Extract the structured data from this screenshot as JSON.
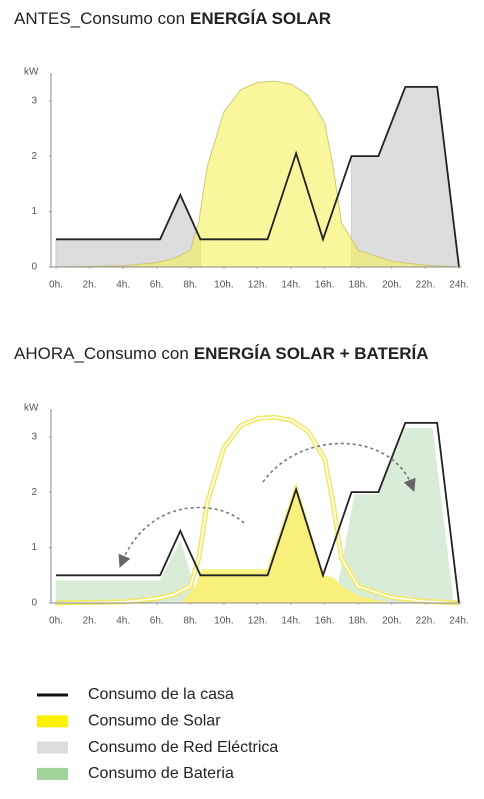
{
  "chart_data": [
    {
      "type": "area",
      "title": [
        "ANTES_Consumo con",
        "ENERGÍA SOLAR"
      ],
      "ylabel": "kW",
      "xlim": [
        0,
        24
      ],
      "ylim": [
        0,
        3.5
      ],
      "yticks": [
        0,
        1,
        2,
        3
      ],
      "xticks": [
        {
          "value": 0,
          "label": "0h."
        },
        {
          "value": 2,
          "label": "2h."
        },
        {
          "value": 4,
          "label": "4h."
        },
        {
          "value": 6,
          "label": "6h."
        },
        {
          "value": 8,
          "label": "8h."
        },
        {
          "value": 10,
          "label": "10h."
        },
        {
          "value": 12,
          "label": "12h."
        },
        {
          "value": 14,
          "label": "14h."
        },
        {
          "value": 16,
          "label": "16h."
        },
        {
          "value": 18,
          "label": "18h."
        },
        {
          "value": 20,
          "label": "20h."
        },
        {
          "value": 22,
          "label": "22h."
        },
        {
          "value": 24,
          "label": "24h."
        }
      ],
      "series": [
        {
          "kind": "area",
          "color": "#dcdcdc",
          "stroke": "#cfcfcf",
          "x": [
            0,
            6.2,
            7.4,
            8.6,
            12,
            17.6,
            19.2,
            20.8,
            22.7,
            24
          ],
          "values": [
            0.5,
            0.5,
            1.3,
            0.5,
            null,
            2.0,
            2.0,
            3.25,
            3.25,
            0
          ]
        },
        {
          "kind": "area",
          "color": "rgba(246,240,90,0.6)",
          "stroke": "#cfc870",
          "x": [
            0,
            4,
            6,
            7,
            8,
            8.5,
            9,
            10,
            11,
            12,
            13,
            14,
            15,
            16,
            16.5,
            17,
            18,
            20,
            22,
            24
          ],
          "values": [
            0,
            0.02,
            0.08,
            0.15,
            0.3,
            0.8,
            1.8,
            2.8,
            3.2,
            3.33,
            3.35,
            3.3,
            3.1,
            2.6,
            1.8,
            0.8,
            0.3,
            0.1,
            0.03,
            0
          ]
        },
        {
          "kind": "line",
          "color": "#222222",
          "x": [
            0,
            6.2,
            7.4,
            8.6,
            12.6,
            14.3,
            15.9,
            17.6,
            19.2,
            20.8,
            22.7,
            24
          ],
          "values": [
            0.5,
            0.5,
            1.3,
            0.5,
            0.5,
            2.05,
            0.5,
            2.0,
            2.0,
            3.25,
            3.25,
            0
          ]
        }
      ]
    },
    {
      "type": "area",
      "title": [
        "AHORA_Consumo con",
        "ENERGÍA SOLAR + BATERÍA"
      ],
      "ylabel": "kW",
      "xlim": [
        0,
        24
      ],
      "ylim": [
        0,
        3.5
      ],
      "yticks": [
        0,
        1,
        2,
        3
      ],
      "xticks": [
        {
          "value": 0,
          "label": "0h."
        },
        {
          "value": 2,
          "label": "2h."
        },
        {
          "value": 4,
          "label": "4h."
        },
        {
          "value": 6,
          "label": "6h."
        },
        {
          "value": 8,
          "label": "8h."
        },
        {
          "value": 10,
          "label": "10h."
        },
        {
          "value": 12,
          "label": "12h."
        },
        {
          "value": 14,
          "label": "14h."
        },
        {
          "value": 16,
          "label": "16h."
        },
        {
          "value": 18,
          "label": "18h."
        },
        {
          "value": 20,
          "label": "20h."
        },
        {
          "value": 22,
          "label": "22h."
        },
        {
          "value": 24,
          "label": "24h."
        }
      ],
      "series": [
        {
          "kind": "area",
          "color": "#d9ecd7",
          "stroke": "#d9ecd7",
          "x": [
            0,
            6.2,
            7.4,
            8.2,
            12,
            16.8,
            17.8,
            19.2,
            20.8,
            22.4,
            23.6
          ],
          "values": [
            0.4,
            0.4,
            1.1,
            0.3,
            null,
            0.3,
            1.95,
            1.95,
            3.15,
            3.15,
            0.15
          ]
        },
        {
          "kind": "area",
          "color": "#f8f07a",
          "stroke": "#f8f07a",
          "x": [
            7.5,
            8.3,
            8.7,
            12.6,
            14.3,
            15.9,
            16.5,
            17,
            18,
            19,
            20
          ],
          "values": [
            0,
            0.3,
            0.6,
            0.6,
            2.15,
            0.5,
            0.45,
            0.3,
            0.12,
            0.05,
            0
          ]
        },
        {
          "kind": "outline",
          "color": "#f2e96a",
          "x": [
            0,
            4,
            6,
            7,
            8,
            8.5,
            9,
            10,
            11,
            12,
            13,
            14,
            15,
            16,
            16.5,
            17,
            18,
            20,
            22,
            24
          ],
          "values": [
            0,
            0.02,
            0.08,
            0.15,
            0.3,
            0.8,
            1.8,
            2.8,
            3.2,
            3.33,
            3.35,
            3.3,
            3.1,
            2.6,
            1.8,
            0.8,
            0.3,
            0.1,
            0.03,
            0
          ]
        },
        {
          "kind": "line",
          "color": "#222222",
          "x": [
            0,
            6.2,
            7.4,
            8.6,
            12.6,
            14.3,
            15.9,
            17.6,
            19.2,
            20.8,
            22.7,
            24
          ],
          "values": [
            0.5,
            0.5,
            1.3,
            0.5,
            0.5,
            2.05,
            0.5,
            2.0,
            2.0,
            3.25,
            3.25,
            0
          ]
        }
      ]
    }
  ],
  "legend": [
    {
      "name": "Consumo de la casa",
      "color": "#111111",
      "kind": "line"
    },
    {
      "name": "Consumo de Solar",
      "color": "#fff200",
      "kind": "box"
    },
    {
      "name": "Consumo de Red Eléctrica",
      "color": "#dcdcdc",
      "kind": "box"
    },
    {
      "name": "Consumo de Bateria",
      "color": "#9fd39a",
      "kind": "box"
    }
  ]
}
